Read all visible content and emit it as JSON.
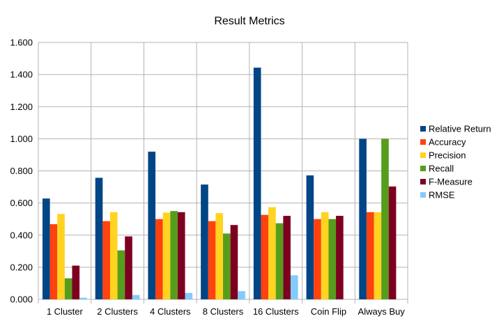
{
  "chart_data": {
    "type": "bar",
    "title": "Result Metrics",
    "xlabel": "",
    "ylabel": "",
    "ylim": [
      0,
      1.6
    ],
    "yticks": [
      "0.000",
      "0.200",
      "0.400",
      "0.600",
      "0.800",
      "1.000",
      "1.200",
      "1.400",
      "1.600"
    ],
    "grid": true,
    "legend_position": "right",
    "categories": [
      "1 Cluster",
      "2 Clusters",
      "4 Clusters",
      "8 Clusters",
      "16 Clusters",
      "Coin Flip",
      "Always Buy"
    ],
    "series": [
      {
        "name": "Relative Return",
        "color": "#004586",
        "values": [
          0.628,
          0.757,
          0.92,
          0.715,
          1.443,
          0.772,
          1.0
        ]
      },
      {
        "name": "Accuracy",
        "color": "#ff420e",
        "values": [
          0.468,
          0.487,
          0.5,
          0.487,
          0.526,
          0.5,
          0.543
        ]
      },
      {
        "name": "Precision",
        "color": "#ffd320",
        "values": [
          0.532,
          0.543,
          0.54,
          0.537,
          0.574,
          0.543,
          0.543
        ]
      },
      {
        "name": "Recall",
        "color": "#579d1c",
        "values": [
          0.131,
          0.305,
          0.55,
          0.41,
          0.474,
          0.5,
          1.0
        ]
      },
      {
        "name": "F-Measure",
        "color": "#7e0021",
        "values": [
          0.21,
          0.392,
          0.543,
          0.463,
          0.52,
          0.52,
          0.703
        ]
      },
      {
        "name": "RMSE",
        "color": "#83caff",
        "values": [
          0.01,
          0.027,
          0.04,
          0.051,
          0.15,
          0.0,
          0.0
        ]
      }
    ]
  }
}
